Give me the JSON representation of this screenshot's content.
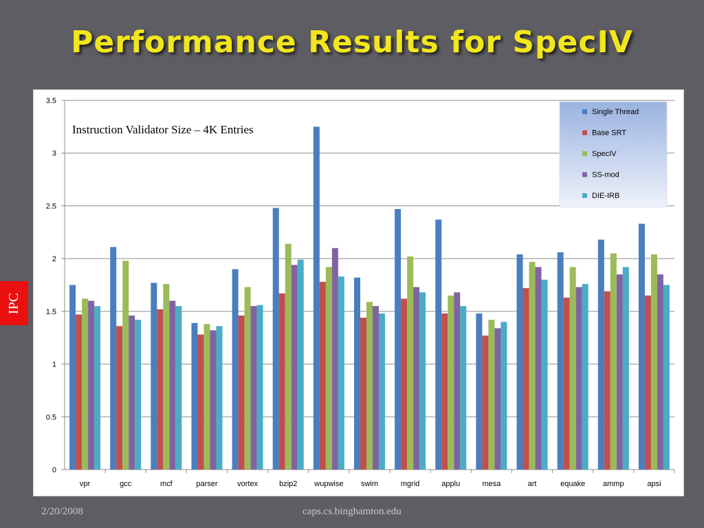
{
  "slide": {
    "title": "Performance Results for SpecIV",
    "side_label": "IPC",
    "footer_date": "2/20/2008",
    "footer_url": "caps.cs.binghamton.edu"
  },
  "colors": {
    "background": "#5e5d63",
    "title": "#f2e61c",
    "side_tab": "#ea1010"
  },
  "chart_data": {
    "type": "bar",
    "annotation": "Instruction Validator Size – 4K Entries",
    "categories": [
      "vpr",
      "gcc",
      "mcf",
      "parser",
      "vortex",
      "bzip2",
      "wupwise",
      "swim",
      "mgrid",
      "applu",
      "mesa",
      "art",
      "equake",
      "ammp",
      "apsi"
    ],
    "ylim": [
      0,
      3.5
    ],
    "yticks": [
      0,
      0.5,
      1,
      1.5,
      2,
      2.5,
      3,
      3.5
    ],
    "ytick_labels": [
      "0",
      "0.5",
      "1",
      "1.5",
      "2",
      "2.5",
      "3",
      "3.5"
    ],
    "grid": true,
    "legend_position": "top-right",
    "series": [
      {
        "name": "Single Thread",
        "color": "#4a7ebf",
        "values": [
          1.75,
          2.11,
          1.77,
          1.39,
          1.9,
          2.48,
          3.25,
          1.82,
          2.47,
          2.37,
          1.48,
          2.04,
          2.06,
          2.18,
          2.33
        ]
      },
      {
        "name": "Base SRT",
        "color": "#c0504d",
        "values": [
          1.47,
          1.36,
          1.52,
          1.28,
          1.46,
          1.67,
          1.78,
          1.44,
          1.62,
          1.48,
          1.27,
          1.72,
          1.63,
          1.69,
          1.65
        ]
      },
      {
        "name": "SpecIV",
        "color": "#9bbb59",
        "values": [
          1.62,
          1.98,
          1.76,
          1.38,
          1.73,
          2.14,
          1.92,
          1.59,
          2.02,
          1.65,
          1.42,
          1.97,
          1.92,
          2.05,
          2.04
        ]
      },
      {
        "name": "SS-mod",
        "color": "#8064a2",
        "values": [
          1.6,
          1.46,
          1.6,
          1.32,
          1.55,
          1.94,
          2.1,
          1.55,
          1.73,
          1.68,
          1.34,
          1.92,
          1.73,
          1.85,
          1.85
        ]
      },
      {
        "name": "DIE-IRB",
        "color": "#4bacc6",
        "values": [
          1.55,
          1.42,
          1.55,
          1.36,
          1.56,
          1.99,
          1.83,
          1.48,
          1.68,
          1.55,
          1.4,
          1.8,
          1.76,
          1.92,
          1.75
        ]
      }
    ]
  }
}
